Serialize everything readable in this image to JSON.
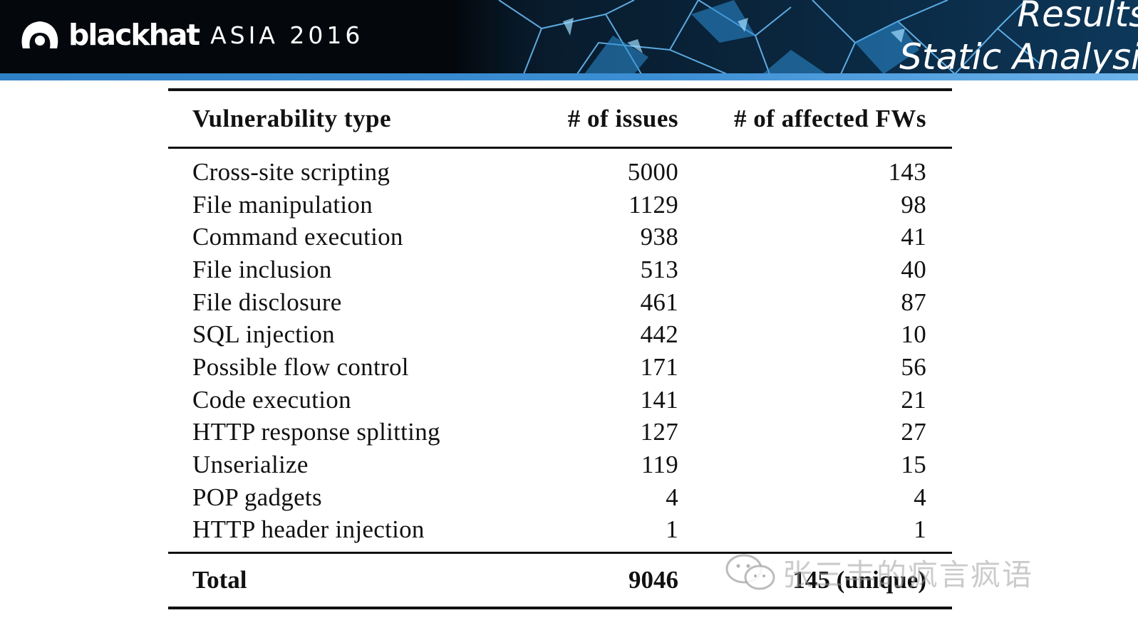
{
  "header": {
    "brand": "blackhat",
    "event": "ASIA 2016",
    "title_line1": "Results:",
    "title_line2": "Static Analysis"
  },
  "table": {
    "columns": [
      "Vulnerability type",
      "# of issues",
      "# of affected FWs"
    ],
    "rows": [
      {
        "type": "Cross-site scripting",
        "issues": "5000",
        "fws": "143"
      },
      {
        "type": "File manipulation",
        "issues": "1129",
        "fws": "98"
      },
      {
        "type": "Command execution",
        "issues": "938",
        "fws": "41"
      },
      {
        "type": "File inclusion",
        "issues": "513",
        "fws": "40"
      },
      {
        "type": "File disclosure",
        "issues": "461",
        "fws": "87"
      },
      {
        "type": "SQL injection",
        "issues": "442",
        "fws": "10"
      },
      {
        "type": "Possible flow control",
        "issues": "171",
        "fws": "56"
      },
      {
        "type": "Code execution",
        "issues": "141",
        "fws": "21"
      },
      {
        "type": "HTTP response splitting",
        "issues": "127",
        "fws": "27"
      },
      {
        "type": "Unserialize",
        "issues": "119",
        "fws": "15"
      },
      {
        "type": "POP gadgets",
        "issues": "4",
        "fws": "4"
      },
      {
        "type": "HTTP header injection",
        "issues": "1",
        "fws": "1"
      }
    ],
    "total": {
      "label": "Total",
      "issues": "9046",
      "fws": "145 (unique)"
    }
  },
  "watermark": {
    "text": "张三丰的疯言疯语",
    "icon": "wechat-icon"
  },
  "colors": {
    "header_bg": "#04080d",
    "stripe": "#3d8fd4",
    "glass": "#4aa6e6"
  }
}
